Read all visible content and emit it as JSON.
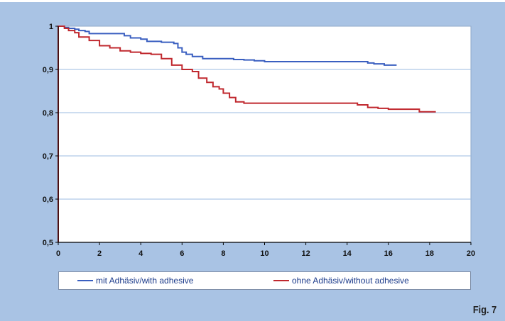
{
  "figure_label": "Fig. 7",
  "colors": {
    "background": "#a9c3e4",
    "plot_bg": "#ffffff",
    "grid": "#9bbbe0"
  },
  "chart_data": {
    "type": "line",
    "title": "",
    "xlabel": "",
    "ylabel": "",
    "xlim": [
      0,
      20
    ],
    "ylim": [
      0.5,
      1
    ],
    "x_ticks": [
      "0",
      "2",
      "4",
      "6",
      "8",
      "10",
      "12",
      "14",
      "16",
      "18",
      "20"
    ],
    "y_ticks": [
      "0,5",
      "0,6",
      "0,7",
      "0,8",
      "0,9",
      "1"
    ],
    "grid": "horizontal",
    "legend_position": "bottom",
    "series": [
      {
        "name": "mit Adhäsiv/with adhesive",
        "color": "#3a5fc0",
        "x": [
          0,
          0.3,
          0.5,
          0.8,
          1.0,
          1.3,
          1.5,
          2.5,
          3.2,
          3.5,
          4.0,
          4.3,
          5.0,
          5.6,
          5.8,
          6.0,
          6.2,
          6.5,
          7.0,
          8.0,
          8.5,
          9.0,
          9.5,
          10.0,
          11.0,
          12.0,
          13.0,
          14.0,
          14.5,
          15.0,
          15.3,
          15.8,
          16.4
        ],
        "y": [
          1,
          0.997,
          0.995,
          0.993,
          0.99,
          0.988,
          0.983,
          0.983,
          0.978,
          0.973,
          0.97,
          0.965,
          0.963,
          0.96,
          0.95,
          0.94,
          0.935,
          0.93,
          0.925,
          0.925,
          0.923,
          0.922,
          0.92,
          0.918,
          0.918,
          0.918,
          0.918,
          0.918,
          0.918,
          0.915,
          0.913,
          0.91,
          0.91
        ]
      },
      {
        "name": "ohne Adhäsiv/without adhesive",
        "color": "#c0282e",
        "x": [
          0,
          0.3,
          0.5,
          0.8,
          1.0,
          1.5,
          2.0,
          2.5,
          3.0,
          3.5,
          4.0,
          4.5,
          5.0,
          5.5,
          6.0,
          6.5,
          6.8,
          7.2,
          7.5,
          7.8,
          8.0,
          8.3,
          8.6,
          9.0,
          10.0,
          11.0,
          12.0,
          13.0,
          14.0,
          14.5,
          15.0,
          15.5,
          16.0,
          17.0,
          17.5,
          18.3
        ],
        "y": [
          1,
          0.995,
          0.99,
          0.985,
          0.975,
          0.967,
          0.955,
          0.95,
          0.943,
          0.94,
          0.937,
          0.935,
          0.925,
          0.91,
          0.9,
          0.895,
          0.88,
          0.87,
          0.86,
          0.855,
          0.845,
          0.835,
          0.825,
          0.822,
          0.822,
          0.822,
          0.822,
          0.822,
          0.822,
          0.818,
          0.812,
          0.81,
          0.808,
          0.808,
          0.802,
          0.802
        ]
      }
    ]
  }
}
